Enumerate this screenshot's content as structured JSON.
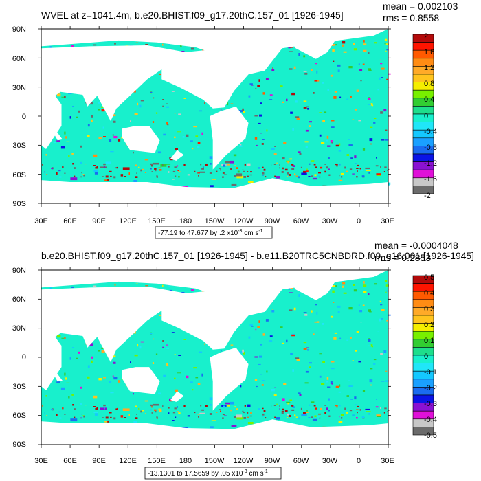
{
  "panels": [
    {
      "title": "WVEL at z=1041.4m, b.e20.BHIST.f09_g17.20thC.157_01 [1926-1945]",
      "mean_text": "mean = 0.002103",
      "rms_text": "rms = 0.8558",
      "info_text": "-77.19 to 47.677 by .2 x10",
      "info_exp": "-3",
      "info_units": " cm s",
      "info_units_exp": "-1",
      "lat_labels": [
        "90N",
        "60N",
        "30N",
        "0",
        "30S",
        "60S",
        "90S"
      ],
      "lon_labels": [
        "30E",
        "60E",
        "90E",
        "120E",
        "150E",
        "180",
        "150W",
        "120W",
        "90W",
        "60W",
        "30W",
        "0",
        "30E"
      ],
      "colorbar_labels": [
        "2",
        "1.6",
        "1.2",
        "0.8",
        "0.4",
        "0",
        "-0.4",
        "-0.8",
        "-1.2",
        "-1.6",
        "-2"
      ],
      "noise": 0.55
    },
    {
      "title": "b.e20.BHIST.f09_g17.20thC.157_01 [1926-1945] - b.e11.B20TRC5CNBDRD.f09_g16.001 [1926-1945]",
      "mean_text": "mean = -0.0004048",
      "rms_text": "rms = 0.2853",
      "info_text": "-13.1301 to 17.5659 by .05 x10",
      "info_exp": "-3",
      "info_units": " cm s",
      "info_units_exp": "-1",
      "lat_labels": [
        "90N",
        "60N",
        "30N",
        "0",
        "30S",
        "60S",
        "90S"
      ],
      "lon_labels": [
        "30E",
        "60E",
        "90E",
        "120E",
        "150E",
        "180",
        "150W",
        "120W",
        "90W",
        "60W",
        "30W",
        "0",
        "30E"
      ],
      "colorbar_labels": [
        "0.5",
        "0.4",
        "0.3",
        "0.2",
        "0.1",
        "0",
        "-0.1",
        "-0.2",
        "-0.3",
        "-0.4",
        "-0.5"
      ],
      "noise": 0.35
    }
  ],
  "palette": [
    "#6b6b6b",
    "#c8c8c8",
    "#e010d8",
    "#8a12d2",
    "#0a14e6",
    "#1a6cf0",
    "#1aa0ff",
    "#14c8ff",
    "#20e6f8",
    "#18f0cc",
    "#1ede8c",
    "#32cd32",
    "#78f000",
    "#f5ee00",
    "#ffc41e",
    "#ffaa28",
    "#ff8c14",
    "#ff5a00",
    "#ff1400",
    "#b40a0a"
  ],
  "land_color": "#ffffff"
}
